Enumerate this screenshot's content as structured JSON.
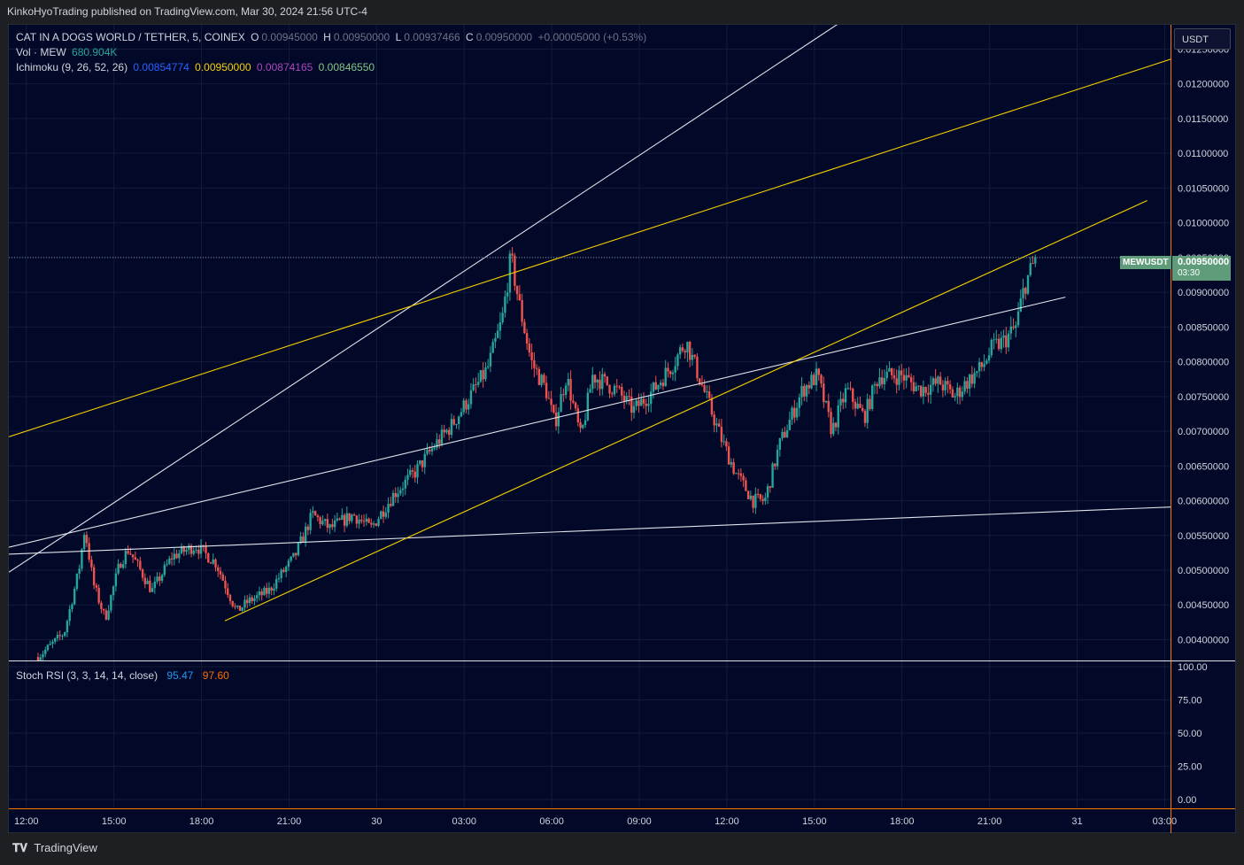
{
  "header": {
    "published_line": "KinkoHyoTrading published on TradingView.com, Mar 30, 2024 21:56 UTC-4"
  },
  "legend": {
    "symbol": "CAT IN A DOGS WORLD / TETHER, 5, COINEX",
    "o_label": "O",
    "o_value": "0.00945000",
    "h_label": "H",
    "h_value": "0.00950000",
    "l_label": "L",
    "l_value": "0.00937466",
    "c_label": "C",
    "c_value": "0.00950000",
    "change": "+0.00005000 (+0.53%)",
    "vol_label": "Vol · MEW",
    "vol_value": "680.904K",
    "ichimoku_label": "Ichimoku (9, 26, 52, 26)",
    "ichimoku_values": [
      "0.00854774",
      "0.00950000",
      "0.00874165",
      "0.00846550"
    ],
    "stoch_label": "Stoch RSI (3, 3, 14, 14, close)",
    "stoch_k": "95.47",
    "stoch_d": "97.60"
  },
  "currency_button": "USDT",
  "last_price": {
    "symbol": "MEWUSDT",
    "price": "0.00950000",
    "countdown": "03:30"
  },
  "colors": {
    "background": "#020828",
    "up": "#26a69a",
    "down": "#ef5350",
    "white_line": "#e0e3eb",
    "yellow_line": "#f5d000",
    "tag": "#5f9d7a",
    "ichimoku_1": "#2962ff",
    "ichimoku_2": "#f5d000",
    "ichimoku_3": "#ab47bc",
    "ichimoku_4": "#81c784",
    "stoch_k": "#2196f3",
    "stoch_d": "#ff6d00"
  },
  "footer": {
    "brand": "TradingView",
    "logo_icon": "tradingview-logo-icon"
  },
  "chart_data": {
    "type": "candlestick",
    "title": "CAT IN A DOGS WORLD / TETHER, 5, COINEX",
    "price_axis": {
      "ylim": [
        0.0037,
        0.01285
      ],
      "ticks": [
        "0.01250000",
        "0.01200000",
        "0.01150000",
        "0.01100000",
        "0.01050000",
        "0.01000000",
        "0.00950000",
        "0.00900000",
        "0.00850000",
        "0.00800000",
        "0.00750000",
        "0.00700000",
        "0.00650000",
        "0.00600000",
        "0.00550000",
        "0.00500000",
        "0.00450000",
        "0.00400000"
      ]
    },
    "time_axis": {
      "xlim_hours": [
        -0.6,
        39.2
      ],
      "ticks": [
        {
          "label": "12:00",
          "h": 0
        },
        {
          "label": "15:00",
          "h": 3
        },
        {
          "label": "18:00",
          "h": 6
        },
        {
          "label": "21:00",
          "h": 9
        },
        {
          "label": "30",
          "h": 12
        },
        {
          "label": "03:00",
          "h": 15
        },
        {
          "label": "06:00",
          "h": 18
        },
        {
          "label": "09:00",
          "h": 21
        },
        {
          "label": "12:00",
          "h": 24
        },
        {
          "label": "15:00",
          "h": 27
        },
        {
          "label": "18:00",
          "h": 30
        },
        {
          "label": "21:00",
          "h": 33
        },
        {
          "label": "31",
          "h": 36
        },
        {
          "label": "03:00",
          "h": 39
        }
      ]
    },
    "price_path": [
      [
        0.4,
        0.00375
      ],
      [
        1.3,
        0.0041
      ],
      [
        1.8,
        0.005
      ],
      [
        2.0,
        0.0056
      ],
      [
        2.3,
        0.0048
      ],
      [
        2.7,
        0.0043
      ],
      [
        3.2,
        0.0051
      ],
      [
        3.5,
        0.0053
      ],
      [
        4.3,
        0.0047
      ],
      [
        5.0,
        0.0052
      ],
      [
        5.8,
        0.00535
      ],
      [
        6.5,
        0.0051
      ],
      [
        7.2,
        0.0044
      ],
      [
        7.6,
        0.00455
      ],
      [
        8.3,
        0.0047
      ],
      [
        9.2,
        0.0052
      ],
      [
        9.8,
        0.0058
      ],
      [
        10.4,
        0.0056
      ],
      [
        11.2,
        0.0058
      ],
      [
        11.8,
        0.0056
      ],
      [
        12.6,
        0.0061
      ],
      [
        13.3,
        0.0064
      ],
      [
        14.0,
        0.0068
      ],
      [
        14.6,
        0.0071
      ],
      [
        15.2,
        0.0075
      ],
      [
        15.8,
        0.0079
      ],
      [
        16.3,
        0.0086
      ],
      [
        16.6,
        0.0095
      ],
      [
        16.9,
        0.0088
      ],
      [
        17.3,
        0.008
      ],
      [
        17.8,
        0.0076
      ],
      [
        18.1,
        0.0071
      ],
      [
        18.5,
        0.0078
      ],
      [
        19.0,
        0.0069
      ],
      [
        19.4,
        0.0078
      ],
      [
        20.2,
        0.0076
      ],
      [
        20.8,
        0.0073
      ],
      [
        21.5,
        0.0076
      ],
      [
        22.2,
        0.008
      ],
      [
        22.6,
        0.0083
      ],
      [
        23.2,
        0.0076
      ],
      [
        23.8,
        0.0069
      ],
      [
        24.3,
        0.0064
      ],
      [
        24.9,
        0.006
      ],
      [
        25.3,
        0.006
      ],
      [
        25.8,
        0.0068
      ],
      [
        26.6,
        0.0076
      ],
      [
        27.1,
        0.0078
      ],
      [
        27.6,
        0.007
      ],
      [
        28.1,
        0.0076
      ],
      [
        28.7,
        0.0072
      ],
      [
        29.2,
        0.0078
      ],
      [
        30.0,
        0.0078
      ],
      [
        30.6,
        0.0076
      ],
      [
        31.3,
        0.0077
      ],
      [
        31.8,
        0.0075
      ],
      [
        32.2,
        0.0077
      ],
      [
        32.7,
        0.0079
      ],
      [
        33.1,
        0.0082
      ],
      [
        33.5,
        0.0083
      ],
      [
        33.9,
        0.0085
      ],
      [
        34.2,
        0.0091
      ],
      [
        34.6,
        0.0095
      ]
    ],
    "trendlines": [
      {
        "color": "white",
        "from": [
          -0.6,
          0.00497
        ],
        "to": [
          27.8,
          0.01286
        ]
      },
      {
        "color": "white",
        "from": [
          -0.6,
          0.00533
        ],
        "to": [
          35.6,
          0.00893
        ]
      },
      {
        "color": "white",
        "from": [
          -0.6,
          0.00523
        ],
        "to": [
          41.0,
          0.00594
        ]
      },
      {
        "color": "yellow",
        "from": [
          -0.6,
          0.00692
        ],
        "to": [
          41.0,
          0.0126
        ]
      },
      {
        "color": "yellow",
        "from": [
          6.8,
          0.00427
        ],
        "to": [
          38.4,
          0.01032
        ]
      }
    ],
    "last_price_line": 0.0095,
    "stoch_rsi": {
      "ylim": [
        -6,
        104
      ],
      "ticks": [
        "100.00",
        "75.00",
        "50.00",
        "25.00",
        "0.00"
      ],
      "k": 95.47,
      "d": 97.6
    }
  }
}
